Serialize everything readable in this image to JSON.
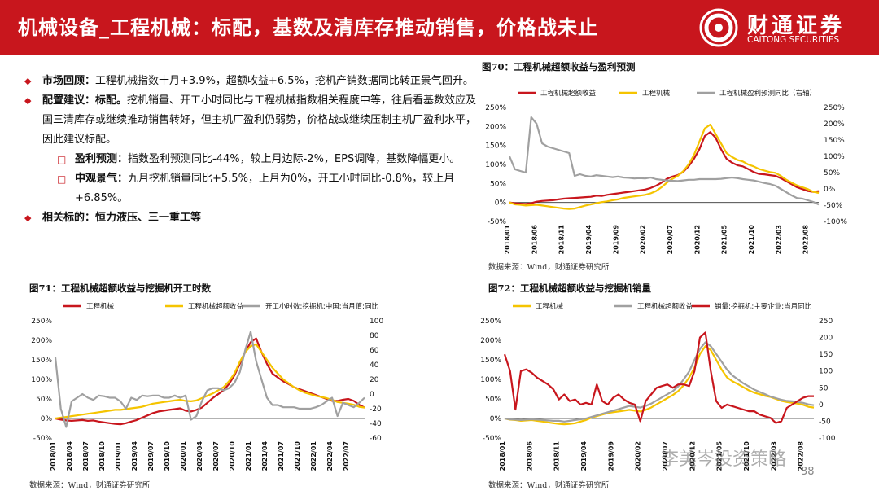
{
  "header": {
    "title": "机械设备_工程机械：标配，基数及清库存推动销售，价格战未止",
    "logo_cn": "财通证券",
    "logo_en": "CAITONG SECURITIES"
  },
  "commentary": {
    "market_label": "市场回顾：",
    "market_text": "工程机械指数十月+3.9%，超额收益+6.5%，挖机产销数据同比转正景气回升。",
    "config_label": "配置建议：标配。",
    "config_text": "挖机销量、开工小时同比与工程机械指数相关程度中等，往后看基数效应及国三清库存或继续推动销售转好，但主机厂盈利仍弱势，价格战或继续压制主机厂盈利水平，因此建议标配。",
    "profit_label": "盈利预测：",
    "profit_text": "指数盈利预测同比-44%，较上月边际-2%，EPS调降，基数降幅更小。",
    "macro_label": "中观景气：",
    "macro_text": "九月挖机销量同比+5.5%，上月为0%，开工小时同比-0.8%，较上月+6.85%。",
    "related_label": "相关标的：",
    "related_text": "恒力液压、三一重工等"
  },
  "chart_data": [
    {
      "type": "line",
      "title": "图70：工程机械超额收益与盈利预测",
      "source": "数据来源：Wind，财通证券研究所",
      "x": [
        "2018/01",
        "2018/02",
        "2018/03",
        "2018/04",
        "2018/05",
        "2018/06",
        "2018/07",
        "2018/08",
        "2018/09",
        "2018/10",
        "2018/11",
        "2018/12",
        "2019/01",
        "2019/02",
        "2019/03",
        "2019/04",
        "2019/05",
        "2019/06",
        "2019/07",
        "2019/08",
        "2019/09",
        "2019/10",
        "2019/11",
        "2019/12",
        "2020/01",
        "2020/02",
        "2020/03",
        "2020/04",
        "2020/05",
        "2020/06",
        "2020/07",
        "2020/08",
        "2020/09",
        "2020/10",
        "2020/11",
        "2020/12",
        "2021/01",
        "2021/02",
        "2021/03",
        "2021/04",
        "2021/05",
        "2021/06",
        "2021/07",
        "2021/08",
        "2021/09",
        "2021/10",
        "2021/11",
        "2021/12",
        "2022/01",
        "2022/02",
        "2022/03",
        "2022/04",
        "2022/05",
        "2022/06",
        "2022/07",
        "2022/08",
        "2022/09",
        "2022/10"
      ],
      "xticks": [
        "2018/01",
        "2018/06",
        "2018/11",
        "2019/04",
        "2019/09",
        "2020/02",
        "2020/07",
        "2020/12",
        "2021/05",
        "2021/10",
        "2022/03",
        "2022/08"
      ],
      "ylim": [
        -50,
        250
      ],
      "yticks": [
        "-50%",
        "0%",
        "50%",
        "100%",
        "150%",
        "200%",
        "250%"
      ],
      "y2lim": [
        -100,
        250
      ],
      "y2ticks": [
        "-100%",
        "-50%",
        "0%",
        "50%",
        "100%",
        "150%",
        "200%",
        "250%"
      ],
      "legend": [
        "工程机械超额收益",
        "工程机械",
        "工程机械盈利预测同比（右轴）"
      ],
      "series": [
        {
          "name": "工程机械超额收益",
          "color": "#c8161d",
          "axis": "left",
          "values": [
            0,
            -2,
            -3,
            -4,
            -2,
            2,
            4,
            5,
            6,
            8,
            10,
            11,
            12,
            13,
            14,
            15,
            18,
            17,
            20,
            22,
            24,
            26,
            28,
            30,
            32,
            34,
            38,
            44,
            52,
            62,
            68,
            72,
            80,
            95,
            115,
            140,
            175,
            185,
            170,
            140,
            115,
            105,
            98,
            95,
            88,
            80,
            75,
            74,
            72,
            70,
            64,
            56,
            48,
            40,
            35,
            30,
            28,
            30
          ]
        },
        {
          "name": "工程机械",
          "color": "#f5c400",
          "axis": "left",
          "values": [
            0,
            -5,
            -6,
            -8,
            -7,
            -6,
            -8,
            -10,
            -12,
            -14,
            -16,
            -17,
            -16,
            -12,
            -8,
            -5,
            -2,
            1,
            3,
            6,
            8,
            12,
            14,
            16,
            18,
            20,
            24,
            30,
            40,
            52,
            62,
            70,
            82,
            100,
            125,
            160,
            195,
            205,
            180,
            155,
            130,
            120,
            112,
            108,
            100,
            95,
            88,
            84,
            80,
            78,
            70,
            60,
            52,
            45,
            40,
            35,
            28,
            25
          ]
        },
        {
          "name": "工程机械盈利预测同比（右轴）",
          "color": "#a0a0a0",
          "axis": "right",
          "values": [
            100,
            60,
            55,
            50,
            220,
            200,
            140,
            130,
            125,
            120,
            115,
            110,
            40,
            45,
            40,
            38,
            42,
            40,
            38,
            36,
            38,
            35,
            34,
            32,
            33,
            32,
            35,
            30,
            28,
            26,
            25,
            24,
            26,
            28,
            28,
            30,
            30,
            30,
            30,
            31,
            33,
            35,
            33,
            30,
            28,
            26,
            22,
            18,
            15,
            10,
            0,
            -10,
            -20,
            -28,
            -30,
            -35,
            -40,
            -48
          ]
        }
      ]
    },
    {
      "type": "line",
      "title": "图71：工程机械超额收益与挖掘机开工时数",
      "source": "数据来源：Wind，财通证券研究所",
      "x": [
        "2018/01",
        "2018/02",
        "2018/03",
        "2018/04",
        "2018/05",
        "2018/06",
        "2018/07",
        "2018/08",
        "2018/09",
        "2018/10",
        "2018/11",
        "2018/12",
        "2019/01",
        "2019/02",
        "2019/03",
        "2019/04",
        "2019/05",
        "2019/06",
        "2019/07",
        "2019/08",
        "2019/09",
        "2019/10",
        "2019/11",
        "2019/12",
        "2020/01",
        "2020/02",
        "2020/03",
        "2020/04",
        "2020/05",
        "2020/06",
        "2020/07",
        "2020/08",
        "2020/09",
        "2020/10",
        "2020/11",
        "2020/12",
        "2021/01",
        "2021/02",
        "2021/03",
        "2021/04",
        "2021/05",
        "2021/06",
        "2021/07",
        "2021/08",
        "2021/09",
        "2021/10",
        "2021/11",
        "2021/12",
        "2022/01",
        "2022/02",
        "2022/03",
        "2022/04",
        "2022/05",
        "2022/06",
        "2022/07",
        "2022/08",
        "2022/09",
        "2022/10"
      ],
      "xticks": [
        "2018/01",
        "2018/04",
        "2018/07",
        "2018/10",
        "2019/01",
        "2019/04",
        "2019/07",
        "2019/10",
        "2020/01",
        "2020/04",
        "2020/07",
        "2020/10",
        "2021/01",
        "2021/04",
        "2021/07",
        "2021/10",
        "2022/01",
        "2022/04",
        "2022/07"
      ],
      "ylim": [
        -50,
        250
      ],
      "yticks": [
        "-50%",
        "0%",
        "50%",
        "100%",
        "150%",
        "200%",
        "250%"
      ],
      "y2lim": [
        -60,
        100
      ],
      "y2ticks": [
        "-60",
        "-40",
        "-20",
        "0",
        "20",
        "40",
        "60",
        "80",
        "100"
      ],
      "legend": [
        "工程机械",
        "工程机械超额收益",
        "开工小时数:挖掘机:中国:当月值:同比"
      ],
      "series": [
        {
          "name": "工程机械",
          "color": "#c8161d",
          "axis": "left",
          "values": [
            0,
            -3,
            -5,
            -6,
            -5,
            -4,
            -6,
            -5,
            -8,
            -10,
            -12,
            -14,
            -15,
            -12,
            -8,
            -4,
            2,
            8,
            14,
            18,
            20,
            22,
            24,
            26,
            20,
            18,
            22,
            28,
            40,
            52,
            62,
            72,
            88,
            110,
            140,
            170,
            195,
            205,
            170,
            140,
            115,
            105,
            95,
            88,
            80,
            75,
            70,
            65,
            60,
            55,
            50,
            45,
            45,
            48,
            50,
            45,
            35,
            28
          ]
        },
        {
          "name": "工程机械超额收益",
          "color": "#f5c400",
          "axis": "left",
          "values": [
            0,
            2,
            4,
            6,
            8,
            10,
            12,
            14,
            16,
            18,
            20,
            22,
            22,
            24,
            26,
            28,
            30,
            34,
            38,
            40,
            42,
            44,
            46,
            48,
            45,
            44,
            46,
            52,
            58,
            64,
            72,
            80,
            95,
            115,
            145,
            170,
            185,
            190,
            170,
            150,
            130,
            115,
            100,
            90,
            80,
            72,
            66,
            62,
            58,
            55,
            52,
            48,
            42,
            40,
            38,
            35,
            30,
            28
          ]
        },
        {
          "name": "开工小时数:挖掘机:中国:当月值:同比",
          "color": "#a0a0a0",
          "axis": "right",
          "values": [
            50,
            -20,
            -45,
            -10,
            -5,
            0,
            -5,
            -8,
            -2,
            -3,
            -5,
            -5,
            -10,
            -20,
            -5,
            -8,
            -2,
            -3,
            -2,
            -2,
            -5,
            -5,
            -2,
            -5,
            -2,
            -35,
            -30,
            -10,
            5,
            8,
            8,
            5,
            8,
            15,
            30,
            60,
            85,
            45,
            20,
            -5,
            -15,
            -15,
            -18,
            -18,
            -18,
            -20,
            -20,
            -20,
            -18,
            -15,
            -10,
            -5,
            -30,
            -12,
            -15,
            -18,
            -12,
            -5
          ]
        }
      ]
    },
    {
      "type": "line",
      "title": "图72：工程机械超额收益与挖掘机销量",
      "source": "数据来源：Wind，财通证券研究所",
      "x": [
        "2018/01",
        "2018/02",
        "2018/03",
        "2018/04",
        "2018/05",
        "2018/06",
        "2018/07",
        "2018/08",
        "2018/09",
        "2018/10",
        "2018/11",
        "2018/12",
        "2019/01",
        "2019/02",
        "2019/03",
        "2019/04",
        "2019/05",
        "2019/06",
        "2019/07",
        "2019/08",
        "2019/09",
        "2019/10",
        "2019/11",
        "2019/12",
        "2020/01",
        "2020/02",
        "2020/03",
        "2020/04",
        "2020/05",
        "2020/06",
        "2020/07",
        "2020/08",
        "2020/09",
        "2020/10",
        "2020/11",
        "2020/12",
        "2021/01",
        "2021/02",
        "2021/03",
        "2021/04",
        "2021/05",
        "2021/06",
        "2021/07",
        "2021/08",
        "2021/09",
        "2021/10",
        "2021/11",
        "2021/12",
        "2022/01",
        "2022/02",
        "2022/03",
        "2022/04",
        "2022/05",
        "2022/06",
        "2022/07",
        "2022/08",
        "2022/09",
        "2022/10"
      ],
      "xticks": [
        "2018/01",
        "2018/06",
        "2018/11",
        "2019/04",
        "2019/09",
        "2020/02",
        "2020/07",
        "2020/12",
        "2021/05",
        "2021/10",
        "2022/03",
        "2022/08"
      ],
      "ylim": [
        -50,
        250
      ],
      "yticks": [
        "-50%",
        "0%",
        "50%",
        "100%",
        "150%",
        "200%",
        "250%"
      ],
      "y2lim": [
        -100,
        250
      ],
      "y2ticks": [
        "-100",
        "-50",
        "0",
        "50",
        "100",
        "150",
        "200",
        "250"
      ],
      "legend": [
        "工程机械",
        "工程机械超额收益",
        "销量:挖掘机:主要企业:当月同比"
      ],
      "series": [
        {
          "name": "工程机械",
          "color": "#f5c400",
          "axis": "left",
          "values": [
            0,
            -3,
            -4,
            -6,
            -5,
            -4,
            -6,
            -8,
            -10,
            -12,
            -14,
            -15,
            -14,
            -12,
            -8,
            -4,
            2,
            6,
            10,
            14,
            16,
            18,
            20,
            22,
            20,
            18,
            22,
            28,
            36,
            44,
            52,
            60,
            70,
            85,
            105,
            130,
            165,
            185,
            175,
            150,
            125,
            105,
            95,
            88,
            80,
            72,
            66,
            62,
            58,
            55,
            50,
            45,
            42,
            40,
            38,
            35,
            30,
            28
          ]
        },
        {
          "name": "工程机械超额收益",
          "color": "#a0a0a0",
          "axis": "left",
          "values": [
            0,
            -2,
            -3,
            -4,
            -3,
            -2,
            -3,
            -4,
            -5,
            -6,
            -6,
            -8,
            -6,
            -4,
            -2,
            0,
            4,
            8,
            12,
            16,
            20,
            24,
            28,
            32,
            30,
            28,
            32,
            38,
            46,
            54,
            62,
            70,
            82,
            100,
            120,
            150,
            178,
            195,
            185,
            165,
            145,
            125,
            110,
            100,
            90,
            82,
            74,
            68,
            62,
            56,
            52,
            48,
            45,
            44,
            42,
            40,
            36,
            34
          ]
        },
        {
          "name": "销量:挖掘机:主要企业:当月同比",
          "color": "#c8161d",
          "axis": "right",
          "values": [
            150,
            100,
            -15,
            100,
            105,
            95,
            80,
            70,
            60,
            45,
            15,
            30,
            10,
            15,
            0,
            5,
            0,
            60,
            10,
            0,
            20,
            30,
            15,
            5,
            0,
            -50,
            10,
            30,
            50,
            55,
            60,
            50,
            60,
            60,
            55,
            100,
            200,
            215,
            100,
            10,
            -10,
            0,
            -5,
            -10,
            -15,
            -20,
            -20,
            -30,
            -35,
            -40,
            -55,
            -50,
            -10,
            0,
            10,
            20,
            25,
            25
          ]
        }
      ]
    }
  ],
  "watermark": "李美岑投资策略",
  "page_number": "38"
}
